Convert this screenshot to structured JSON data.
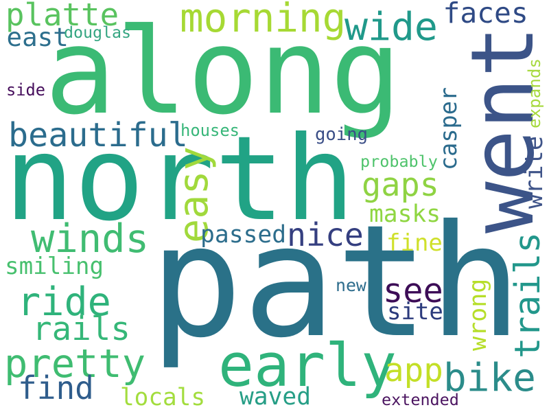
{
  "background": "#ffffff",
  "words": [
    {
      "text": "path",
      "color": "#2a7188",
      "rotated": false
    },
    {
      "text": "north",
      "color": "#21a385",
      "rotated": false
    },
    {
      "text": "along",
      "color": "#3bba74",
      "rotated": false
    },
    {
      "text": "went",
      "color": "#3c5488",
      "rotated": true
    },
    {
      "text": "early",
      "color": "#2fb37b",
      "rotated": false
    },
    {
      "text": "morning",
      "color": "#a6d934",
      "rotated": false
    },
    {
      "text": "wide",
      "color": "#20998a",
      "rotated": false
    },
    {
      "text": "platte",
      "color": "#59c35f",
      "rotated": false
    },
    {
      "text": "beautiful",
      "color": "#2b6c8d",
      "rotated": false
    },
    {
      "text": "winds",
      "color": "#40bc72",
      "rotated": false
    },
    {
      "text": "ride",
      "color": "#2fb37b",
      "rotated": false
    },
    {
      "text": "pretty",
      "color": "#3fbc71",
      "rotated": false
    },
    {
      "text": "rails",
      "color": "#35b778",
      "rotated": false
    },
    {
      "text": "find",
      "color": "#2f5d8c",
      "rotated": false
    },
    {
      "text": "easy",
      "color": "#a1d93c",
      "rotated": true
    },
    {
      "text": "nice",
      "color": "#353f80",
      "rotated": false
    },
    {
      "text": "gaps",
      "color": "#8fd343",
      "rotated": false
    },
    {
      "text": "bike",
      "color": "#2b8c8a",
      "rotated": false
    },
    {
      "text": "trails",
      "color": "#22978b",
      "rotated": true
    },
    {
      "text": "see",
      "color": "#3d0d57",
      "rotated": false
    },
    {
      "text": "app",
      "color": "#c3df27",
      "rotated": false
    },
    {
      "text": "casper",
      "color": "#2b6b8d",
      "rotated": true
    },
    {
      "text": "write",
      "color": "#3f5489",
      "rotated": true
    },
    {
      "text": "faces",
      "color": "#2f4a85",
      "rotated": false
    },
    {
      "text": "east",
      "color": "#2d6f8d",
      "rotated": false
    },
    {
      "text": "douglas",
      "color": "#34a581",
      "rotated": false
    },
    {
      "text": "side",
      "color": "#460e5c",
      "rotated": false
    },
    {
      "text": "houses",
      "color": "#37b679",
      "rotated": false
    },
    {
      "text": "going",
      "color": "#3a4e87",
      "rotated": false
    },
    {
      "text": "probably",
      "color": "#4ec36b",
      "rotated": false
    },
    {
      "text": "expands",
      "color": "#a6d93d",
      "rotated": true
    },
    {
      "text": "passed",
      "color": "#2c6d8c",
      "rotated": false
    },
    {
      "text": "masks",
      "color": "#8fd642",
      "rotated": false
    },
    {
      "text": "fine",
      "color": "#cfe02a",
      "rotated": false
    },
    {
      "text": "smiling",
      "color": "#47c06e",
      "rotated": false
    },
    {
      "text": "new",
      "color": "#2e6d8d",
      "rotated": false
    },
    {
      "text": "wrong",
      "color": "#b6de2a",
      "rotated": true
    },
    {
      "text": "site",
      "color": "#2b3a7c",
      "rotated": false
    },
    {
      "text": "locals",
      "color": "#a3dd3e",
      "rotated": false
    },
    {
      "text": "waved",
      "color": "#269e86",
      "rotated": false
    },
    {
      "text": "extended",
      "color": "#4b1460",
      "rotated": false
    }
  ]
}
